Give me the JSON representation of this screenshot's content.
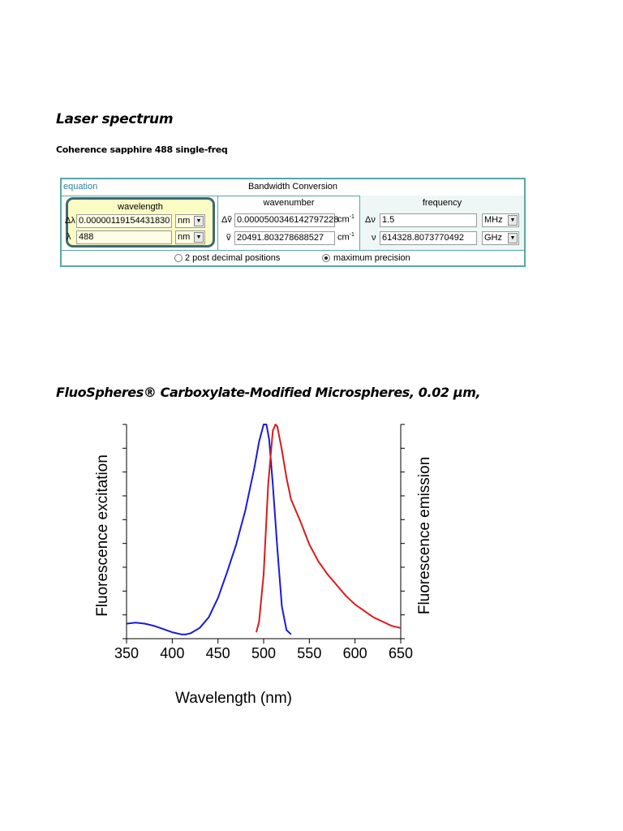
{
  "page": {
    "heading1": "Laser spectrum",
    "subheading": "Coherence sapphire 488 single-freq",
    "heading2": "FluoSpheres® Carboxylate-Modified Microspheres, 0.02 µm,"
  },
  "converter": {
    "equation_link": "equation",
    "title": "Bandwidth Conversion",
    "wavelength": {
      "header": "wavelength",
      "delta_symbol": "Δλ",
      "delta_value": "0.00000119154431830",
      "delta_unit": "nm",
      "value_symbol": "λ",
      "value": "488",
      "value_unit": "nm"
    },
    "wavenumber": {
      "header": "wavenumber",
      "delta_symbol": "Δṽ",
      "delta_value": "0.0000500346142797228",
      "delta_unit": "cm",
      "value_symbol": "ṽ",
      "value": "20491.803278688527",
      "value_unit": "cm",
      "unit_exponent": "-1"
    },
    "frequency": {
      "header": "frequency",
      "delta_symbol": "Δν",
      "delta_value": "1.5",
      "delta_unit": "MHz",
      "value_symbol": "ν",
      "value": "614328.8073770492",
      "value_unit": "GHz"
    },
    "options": {
      "two_decimals": "2 post decimal positions",
      "max_precision": "maximum precision",
      "selected": "max_precision"
    },
    "colors": {
      "border": "#5aa6a8",
      "highlight": "#fbfbc4",
      "link": "#2f7fa0"
    }
  },
  "chart_data": {
    "type": "line",
    "xlabel": "Wavelength (nm)",
    "ylabel_left": "Fluorescence excitation",
    "ylabel_right": "Fluorescence emission",
    "xlim": [
      350,
      650
    ],
    "ylim": [
      0,
      1
    ],
    "xticks": [
      350,
      400,
      450,
      500,
      550,
      600,
      650
    ],
    "grid": false,
    "series": [
      {
        "color": "#1a1adc",
        "x": [
          350,
          360,
          370,
          380,
          390,
          400,
          410,
          415,
          420,
          430,
          440,
          450,
          460,
          470,
          480,
          485,
          490,
          495,
          500,
          503,
          506,
          510,
          515,
          520,
          525,
          530
        ],
        "y": [
          0.07,
          0.075,
          0.07,
          0.06,
          0.045,
          0.03,
          0.02,
          0.02,
          0.025,
          0.05,
          0.1,
          0.19,
          0.31,
          0.44,
          0.6,
          0.7,
          0.8,
          0.92,
          1.0,
          1.0,
          0.93,
          0.72,
          0.42,
          0.15,
          0.04,
          0.02
        ]
      },
      {
        "color": "#dc1a1a",
        "x": [
          492,
          495,
          500,
          505,
          510,
          513,
          515,
          520,
          525,
          530,
          535,
          540,
          550,
          560,
          570,
          580,
          590,
          600,
          610,
          620,
          630,
          640,
          650
        ],
        "y": [
          0.03,
          0.08,
          0.3,
          0.72,
          0.97,
          1.0,
          0.99,
          0.88,
          0.75,
          0.65,
          0.6,
          0.55,
          0.44,
          0.36,
          0.3,
          0.25,
          0.2,
          0.16,
          0.13,
          0.1,
          0.08,
          0.06,
          0.05
        ]
      }
    ]
  }
}
